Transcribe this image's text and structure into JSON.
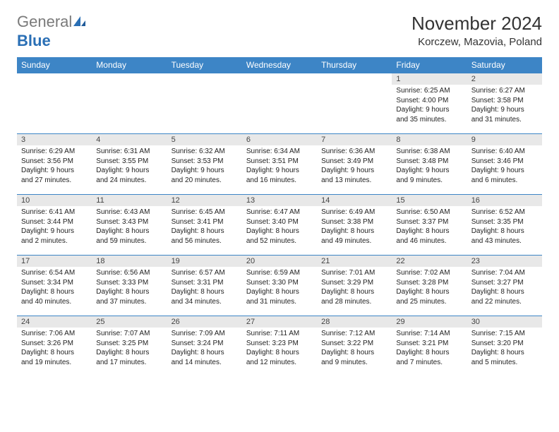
{
  "brand": {
    "word1": "General",
    "word2": "Blue"
  },
  "title": "November 2024",
  "location": "Korczew, Mazovia, Poland",
  "colors": {
    "header_bg": "#3d85c6",
    "header_text": "#ffffff",
    "daynum_bg": "#e8e8e8",
    "border": "#3d85c6",
    "brand_gray": "#7a7a7a",
    "brand_blue": "#2a6fb5"
  },
  "weekdays": [
    "Sunday",
    "Monday",
    "Tuesday",
    "Wednesday",
    "Thursday",
    "Friday",
    "Saturday"
  ],
  "weeks": [
    [
      {
        "n": "",
        "sunrise": "",
        "sunset": "",
        "daylight": ""
      },
      {
        "n": "",
        "sunrise": "",
        "sunset": "",
        "daylight": ""
      },
      {
        "n": "",
        "sunrise": "",
        "sunset": "",
        "daylight": ""
      },
      {
        "n": "",
        "sunrise": "",
        "sunset": "",
        "daylight": ""
      },
      {
        "n": "",
        "sunrise": "",
        "sunset": "",
        "daylight": ""
      },
      {
        "n": "1",
        "sunrise": "Sunrise: 6:25 AM",
        "sunset": "Sunset: 4:00 PM",
        "daylight": "Daylight: 9 hours and 35 minutes."
      },
      {
        "n": "2",
        "sunrise": "Sunrise: 6:27 AM",
        "sunset": "Sunset: 3:58 PM",
        "daylight": "Daylight: 9 hours and 31 minutes."
      }
    ],
    [
      {
        "n": "3",
        "sunrise": "Sunrise: 6:29 AM",
        "sunset": "Sunset: 3:56 PM",
        "daylight": "Daylight: 9 hours and 27 minutes."
      },
      {
        "n": "4",
        "sunrise": "Sunrise: 6:31 AM",
        "sunset": "Sunset: 3:55 PM",
        "daylight": "Daylight: 9 hours and 24 minutes."
      },
      {
        "n": "5",
        "sunrise": "Sunrise: 6:32 AM",
        "sunset": "Sunset: 3:53 PM",
        "daylight": "Daylight: 9 hours and 20 minutes."
      },
      {
        "n": "6",
        "sunrise": "Sunrise: 6:34 AM",
        "sunset": "Sunset: 3:51 PM",
        "daylight": "Daylight: 9 hours and 16 minutes."
      },
      {
        "n": "7",
        "sunrise": "Sunrise: 6:36 AM",
        "sunset": "Sunset: 3:49 PM",
        "daylight": "Daylight: 9 hours and 13 minutes."
      },
      {
        "n": "8",
        "sunrise": "Sunrise: 6:38 AM",
        "sunset": "Sunset: 3:48 PM",
        "daylight": "Daylight: 9 hours and 9 minutes."
      },
      {
        "n": "9",
        "sunrise": "Sunrise: 6:40 AM",
        "sunset": "Sunset: 3:46 PM",
        "daylight": "Daylight: 9 hours and 6 minutes."
      }
    ],
    [
      {
        "n": "10",
        "sunrise": "Sunrise: 6:41 AM",
        "sunset": "Sunset: 3:44 PM",
        "daylight": "Daylight: 9 hours and 2 minutes."
      },
      {
        "n": "11",
        "sunrise": "Sunrise: 6:43 AM",
        "sunset": "Sunset: 3:43 PM",
        "daylight": "Daylight: 8 hours and 59 minutes."
      },
      {
        "n": "12",
        "sunrise": "Sunrise: 6:45 AM",
        "sunset": "Sunset: 3:41 PM",
        "daylight": "Daylight: 8 hours and 56 minutes."
      },
      {
        "n": "13",
        "sunrise": "Sunrise: 6:47 AM",
        "sunset": "Sunset: 3:40 PM",
        "daylight": "Daylight: 8 hours and 52 minutes."
      },
      {
        "n": "14",
        "sunrise": "Sunrise: 6:49 AM",
        "sunset": "Sunset: 3:38 PM",
        "daylight": "Daylight: 8 hours and 49 minutes."
      },
      {
        "n": "15",
        "sunrise": "Sunrise: 6:50 AM",
        "sunset": "Sunset: 3:37 PM",
        "daylight": "Daylight: 8 hours and 46 minutes."
      },
      {
        "n": "16",
        "sunrise": "Sunrise: 6:52 AM",
        "sunset": "Sunset: 3:35 PM",
        "daylight": "Daylight: 8 hours and 43 minutes."
      }
    ],
    [
      {
        "n": "17",
        "sunrise": "Sunrise: 6:54 AM",
        "sunset": "Sunset: 3:34 PM",
        "daylight": "Daylight: 8 hours and 40 minutes."
      },
      {
        "n": "18",
        "sunrise": "Sunrise: 6:56 AM",
        "sunset": "Sunset: 3:33 PM",
        "daylight": "Daylight: 8 hours and 37 minutes."
      },
      {
        "n": "19",
        "sunrise": "Sunrise: 6:57 AM",
        "sunset": "Sunset: 3:31 PM",
        "daylight": "Daylight: 8 hours and 34 minutes."
      },
      {
        "n": "20",
        "sunrise": "Sunrise: 6:59 AM",
        "sunset": "Sunset: 3:30 PM",
        "daylight": "Daylight: 8 hours and 31 minutes."
      },
      {
        "n": "21",
        "sunrise": "Sunrise: 7:01 AM",
        "sunset": "Sunset: 3:29 PM",
        "daylight": "Daylight: 8 hours and 28 minutes."
      },
      {
        "n": "22",
        "sunrise": "Sunrise: 7:02 AM",
        "sunset": "Sunset: 3:28 PM",
        "daylight": "Daylight: 8 hours and 25 minutes."
      },
      {
        "n": "23",
        "sunrise": "Sunrise: 7:04 AM",
        "sunset": "Sunset: 3:27 PM",
        "daylight": "Daylight: 8 hours and 22 minutes."
      }
    ],
    [
      {
        "n": "24",
        "sunrise": "Sunrise: 7:06 AM",
        "sunset": "Sunset: 3:26 PM",
        "daylight": "Daylight: 8 hours and 19 minutes."
      },
      {
        "n": "25",
        "sunrise": "Sunrise: 7:07 AM",
        "sunset": "Sunset: 3:25 PM",
        "daylight": "Daylight: 8 hours and 17 minutes."
      },
      {
        "n": "26",
        "sunrise": "Sunrise: 7:09 AM",
        "sunset": "Sunset: 3:24 PM",
        "daylight": "Daylight: 8 hours and 14 minutes."
      },
      {
        "n": "27",
        "sunrise": "Sunrise: 7:11 AM",
        "sunset": "Sunset: 3:23 PM",
        "daylight": "Daylight: 8 hours and 12 minutes."
      },
      {
        "n": "28",
        "sunrise": "Sunrise: 7:12 AM",
        "sunset": "Sunset: 3:22 PM",
        "daylight": "Daylight: 8 hours and 9 minutes."
      },
      {
        "n": "29",
        "sunrise": "Sunrise: 7:14 AM",
        "sunset": "Sunset: 3:21 PM",
        "daylight": "Daylight: 8 hours and 7 minutes."
      },
      {
        "n": "30",
        "sunrise": "Sunrise: 7:15 AM",
        "sunset": "Sunset: 3:20 PM",
        "daylight": "Daylight: 8 hours and 5 minutes."
      }
    ]
  ]
}
